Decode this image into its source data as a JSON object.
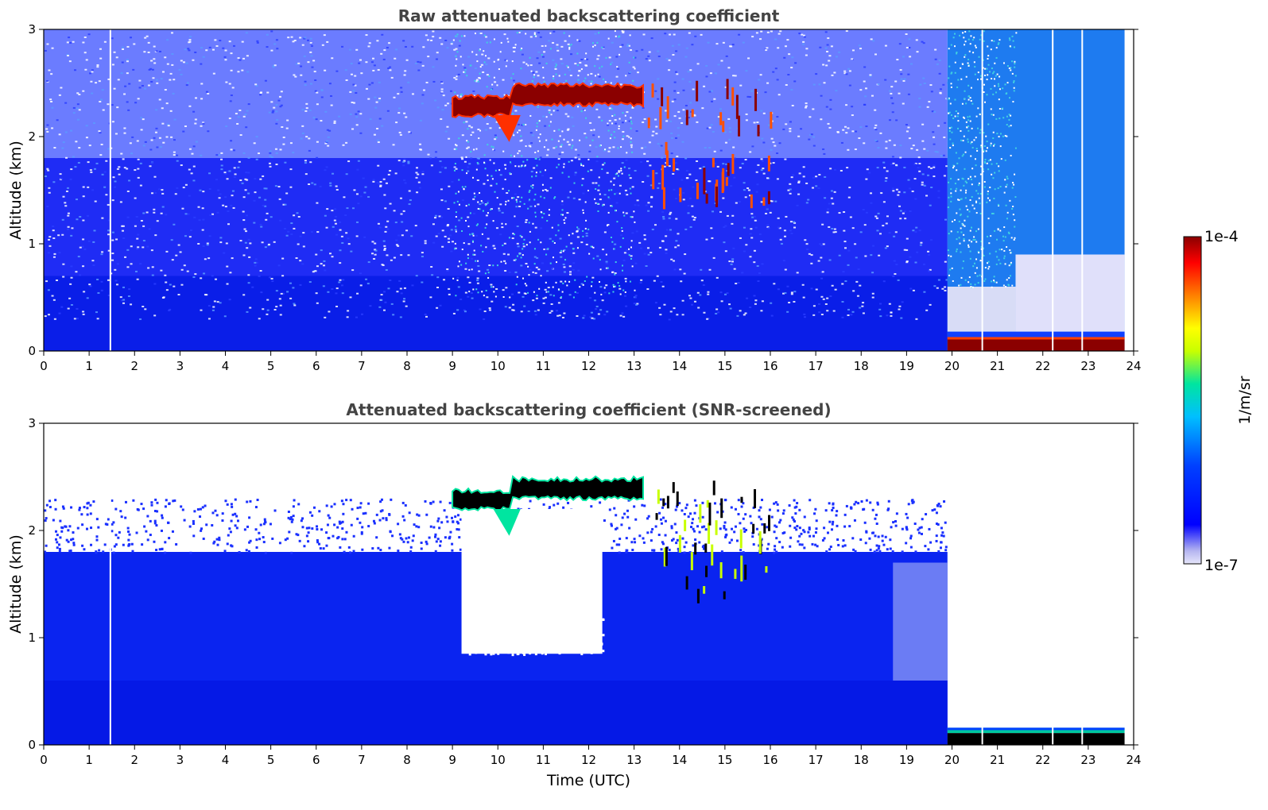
{
  "chart_data": [
    {
      "type": "heatmap",
      "title": "Raw attenuated backscattering coefficient",
      "xlabel": "",
      "ylabel": "Altitude (km)",
      "xlim": [
        0,
        24
      ],
      "ylim": [
        0,
        3
      ],
      "xticks": [
        "0",
        "1",
        "2",
        "3",
        "4",
        "5",
        "6",
        "7",
        "8",
        "9",
        "10",
        "11",
        "12",
        "13",
        "14",
        "15",
        "16",
        "17",
        "18",
        "19",
        "20",
        "21",
        "22",
        "23",
        "24"
      ],
      "yticks": [
        "0",
        "1",
        "2",
        "3"
      ],
      "data_end_time": 23.8,
      "features": {
        "cloud_layer": {
          "time": [
            9.0,
            13.2
          ],
          "altitude": [
            2.2,
            2.5
          ]
        },
        "scattered_cloud": {
          "time": [
            13.3,
            16.0
          ],
          "altitude": [
            1.3,
            2.4
          ]
        },
        "noise_region": {
          "time": [
            9.0,
            13.0
          ],
          "altitude": [
            0.5,
            3.0
          ]
        },
        "dense_boundary_layer_top": 1.8,
        "surface_strong_return": {
          "time": [
            19.9,
            23.8
          ],
          "altitude": [
            0.0,
            0.18
          ]
        },
        "gap_time": [
          1.45,
          20.65,
          22.2,
          22.85
        ]
      }
    },
    {
      "type": "heatmap",
      "title": "Attenuated backscattering coefficient (SNR-screened)",
      "xlabel": "Time (UTC)",
      "ylabel": "Altitude (km)",
      "xlim": [
        0,
        24
      ],
      "ylim": [
        0,
        3
      ],
      "xticks": [
        "0",
        "1",
        "2",
        "3",
        "4",
        "5",
        "6",
        "7",
        "8",
        "9",
        "10",
        "11",
        "12",
        "13",
        "14",
        "15",
        "16",
        "17",
        "18",
        "19",
        "20",
        "21",
        "22",
        "23",
        "24"
      ],
      "yticks": [
        "0",
        "1",
        "2",
        "3"
      ],
      "data_end_time": 23.8,
      "features": {
        "cloud_layer": {
          "time": [
            9.0,
            13.2
          ],
          "altitude": [
            2.2,
            2.5
          ]
        },
        "scattered_cloud": {
          "time": [
            13.3,
            16.0
          ],
          "altitude": [
            1.3,
            2.4
          ]
        },
        "screened_out_region": {
          "time": [
            9.2,
            12.3
          ],
          "altitude": [
            0.85,
            2.2
          ]
        },
        "boundary_layer_top": 1.8,
        "surface_strong_return": {
          "time": [
            19.9,
            23.8
          ],
          "altitude": [
            0.0,
            0.16
          ]
        },
        "gap_time": [
          1.45,
          20.65,
          22.2,
          22.85
        ]
      }
    }
  ],
  "colorbar": {
    "label": "1/m/sr",
    "max_label": "1e-4",
    "min_label": "1e-7",
    "colors": [
      "#e6e6fa",
      "#0000ff",
      "#00bfff",
      "#00e5a0",
      "#c8ff00",
      "#ffff00",
      "#ff8000",
      "#ff0000",
      "#8b0000"
    ]
  }
}
